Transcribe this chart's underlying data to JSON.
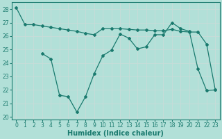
{
  "line1_x": [
    0,
    1,
    2,
    3,
    4,
    5,
    6,
    7,
    8,
    9,
    10,
    11,
    12,
    13,
    14,
    15,
    16,
    17,
    18,
    19,
    20,
    21,
    22,
    23
  ],
  "line1_y": [
    28.1,
    26.85,
    26.85,
    26.75,
    26.65,
    26.55,
    26.45,
    26.35,
    26.2,
    26.1,
    26.55,
    26.55,
    26.55,
    26.5,
    26.45,
    26.45,
    26.4,
    26.4,
    26.5,
    26.35,
    26.3,
    26.3,
    25.4,
    22.0
  ],
  "line2_x": [
    3,
    4,
    5,
    6,
    7,
    8,
    9,
    10,
    11,
    12,
    13,
    14,
    15,
    16,
    17,
    18,
    19,
    20,
    21,
    22,
    23
  ],
  "line2_y": [
    24.7,
    24.3,
    21.6,
    21.5,
    20.35,
    21.5,
    23.2,
    24.55,
    24.95,
    26.15,
    25.85,
    25.05,
    25.2,
    26.1,
    26.1,
    27.0,
    26.55,
    26.35,
    23.55,
    21.95,
    22.0
  ],
  "line_color": "#1a7a6e",
  "bg_color": "#b2e0d8",
  "grid_color": "#c8dcd8",
  "xlabel": "Humidex (Indice chaleur)",
  "ylim": [
    19.8,
    28.5
  ],
  "xlim": [
    -0.5,
    23.5
  ],
  "yticks": [
    20,
    21,
    22,
    23,
    24,
    25,
    26,
    27,
    28
  ],
  "xticks": [
    0,
    1,
    2,
    3,
    4,
    5,
    6,
    7,
    8,
    9,
    10,
    11,
    12,
    13,
    14,
    15,
    16,
    17,
    18,
    19,
    20,
    21,
    22,
    23
  ],
  "marker": "D",
  "markersize": 2.0,
  "linewidth": 0.9,
  "xlabel_fontsize": 7,
  "tick_fontsize": 5.5
}
